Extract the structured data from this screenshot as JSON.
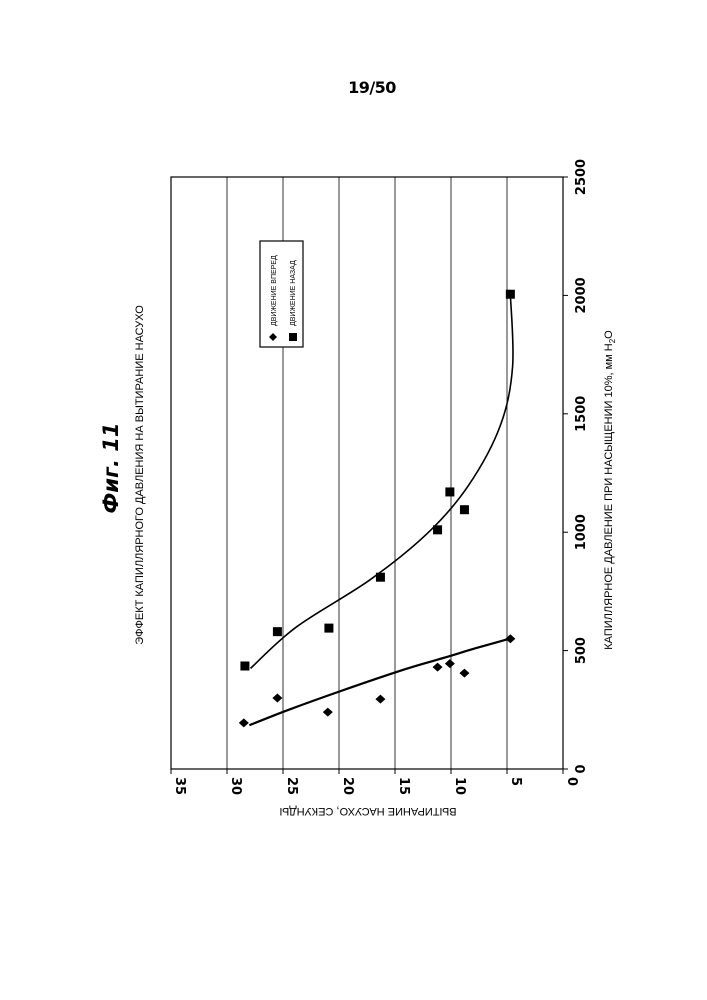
{
  "page_number": "19/50",
  "figure_label": "Фиг. 11",
  "chart_data": {
    "type": "scatter",
    "title": "ЭФФЕКТ КАПИЛЛЯРНОГО ДАВЛЕНИЯ НА ВЫТИРАНИЕ НАСУХО",
    "xlabel": "КАПИЛЛЯРНОЕ ДАВЛЕНИЕ ПРИ НАСЫЩЕНИИ 10%, мм H",
    "xlabel_sub": "2",
    "xlabel_tail": "O",
    "ylabel": "ВЫТИРАНИЕ НАСУХО, СЕКУНДЫ",
    "xlim": [
      0,
      2500
    ],
    "ylim": [
      0,
      35
    ],
    "x_ticks": [
      "0",
      "500",
      "1000",
      "1500",
      "2000",
      "2500"
    ],
    "y_ticks": [
      "0",
      "5",
      "10",
      "15",
      "20",
      "25",
      "30",
      "35"
    ],
    "grid": "horizontal",
    "legend_position": "top-right",
    "series": [
      {
        "name": "ДВИЖЕНИЕ ВПЕРЕД",
        "marker": "diamond",
        "points": [
          [
            195,
            28.5
          ],
          [
            300,
            25.5
          ],
          [
            240,
            21
          ],
          [
            295,
            16.3
          ],
          [
            430,
            11.2
          ],
          [
            445,
            10.1
          ],
          [
            405,
            8.8
          ],
          [
            550,
            4.7
          ]
        ],
        "trend": [
          [
            185,
            28.0
          ],
          [
            250,
            24.5
          ],
          [
            330,
            19.8
          ],
          [
            420,
            14.2
          ],
          [
            470,
            10.6
          ],
          [
            510,
            7.8
          ],
          [
            550,
            4.8
          ]
        ]
      },
      {
        "name": "ДВИЖЕНИЕ НАЗАД",
        "marker": "square",
        "points": [
          [
            435,
            28.4
          ],
          [
            580,
            25.5
          ],
          [
            595,
            20.9
          ],
          [
            810,
            16.3
          ],
          [
            1010,
            11.2
          ],
          [
            1170,
            10.1
          ],
          [
            1095,
            8.8
          ],
          [
            2005,
            4.7
          ]
        ],
        "trend": [
          [
            425,
            27.9
          ],
          [
            600,
            23.8
          ],
          [
            800,
            17.2
          ],
          [
            1000,
            12.0
          ],
          [
            1200,
            8.4
          ],
          [
            1450,
            5.6
          ],
          [
            1700,
            4.5
          ],
          [
            2005,
            4.7
          ]
        ]
      }
    ]
  }
}
